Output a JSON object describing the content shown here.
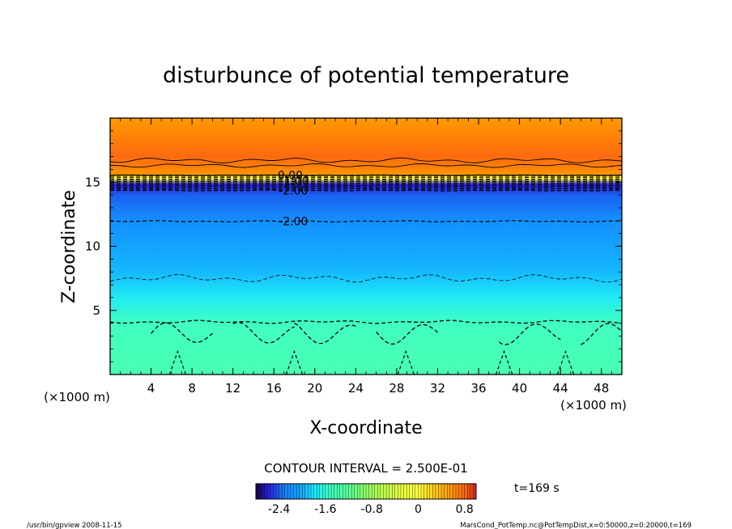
{
  "chart_data": {
    "type": "heatmap",
    "title": "disturbunce of potential temperature",
    "xlabel": "X-coordinate",
    "ylabel": "Z-coordinate",
    "x_unit": "(×1000 m)",
    "y_unit": "(×1000 m)",
    "xlim": [
      0,
      50
    ],
    "ylim": [
      0,
      20
    ],
    "x_ticks": [
      4,
      8,
      12,
      16,
      20,
      24,
      28,
      32,
      36,
      40,
      44,
      48
    ],
    "y_ticks": [
      5,
      10,
      15
    ],
    "contour_interval_text": "CONTOUR INTERVAL = 2.500E-01",
    "time_label": "t=169 s",
    "colorbar": {
      "min": -2.8,
      "max": 1.0,
      "tick_values": [
        -2.4,
        -1.6,
        -0.8,
        0,
        0.8
      ],
      "tick_labels": [
        "-2.4",
        "-1.6",
        "-0.8",
        "0",
        "0.8"
      ]
    },
    "profile": [
      {
        "z": 0.0,
        "value": -1.4
      },
      {
        "z": 4.0,
        "value": -1.5
      },
      {
        "z": 6.0,
        "value": -1.75
      },
      {
        "z": 8.0,
        "value": -1.95
      },
      {
        "z": 10.0,
        "value": -2.05
      },
      {
        "z": 12.0,
        "value": -2.2
      },
      {
        "z": 14.0,
        "value": -2.4
      },
      {
        "z": 14.8,
        "value": -2.6
      },
      {
        "z": 15.3,
        "value": 0.0
      },
      {
        "z": 15.7,
        "value": 0.6
      },
      {
        "z": 17.0,
        "value": 0.8
      },
      {
        "z": 20.0,
        "value": 0.55
      }
    ],
    "contour_labels": [
      {
        "text": "0.00",
        "x": 17.6,
        "z": 15.55
      },
      {
        "text": "-1.00",
        "x": 18.0,
        "z": 15.1
      },
      {
        "text": "-2.00",
        "x": 17.9,
        "z": 14.35
      },
      {
        "text": "-2.00",
        "x": 17.9,
        "z": 11.95
      }
    ]
  },
  "footer": {
    "left": "/usr/bin/gpview   2008-11-15",
    "right": "MarsCond_PotTemp.nc@PotTempDist,x=0:50000,z=0:20000,t=169"
  },
  "colors": {
    "orange": "#ff9a00",
    "red_orange": "#ff6a10",
    "yellow": "#ffff40",
    "blue": "#1a8cff",
    "cyan": "#19e6ff",
    "aqua_green": "#3cffc8"
  }
}
